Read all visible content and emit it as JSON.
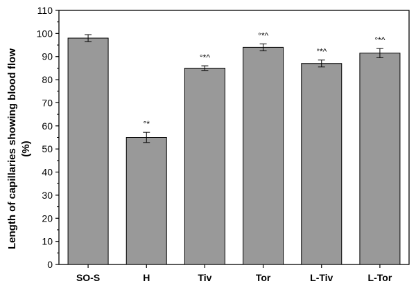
{
  "chart_data": {
    "type": "bar",
    "title": "",
    "xlabel": "",
    "ylabel_lines": [
      "Length of capillaries showing blood flow",
      "(%)"
    ],
    "categories": [
      "SO-S",
      "H",
      "Tiv",
      "Tor",
      "L-Tiv",
      "L-Tor"
    ],
    "values": [
      98,
      55,
      85,
      94,
      87,
      91.5
    ],
    "errors": [
      1.5,
      2.2,
      1.0,
      1.5,
      1.5,
      2.0
    ],
    "annotations": [
      "",
      "°*",
      "°*^",
      "°*^",
      "°*^",
      "°*^"
    ],
    "ylim": [
      0,
      110
    ],
    "yticks": [
      0,
      10,
      20,
      30,
      40,
      50,
      60,
      70,
      80,
      90,
      100,
      110
    ],
    "bar_color": "#999999",
    "grid": false
  }
}
